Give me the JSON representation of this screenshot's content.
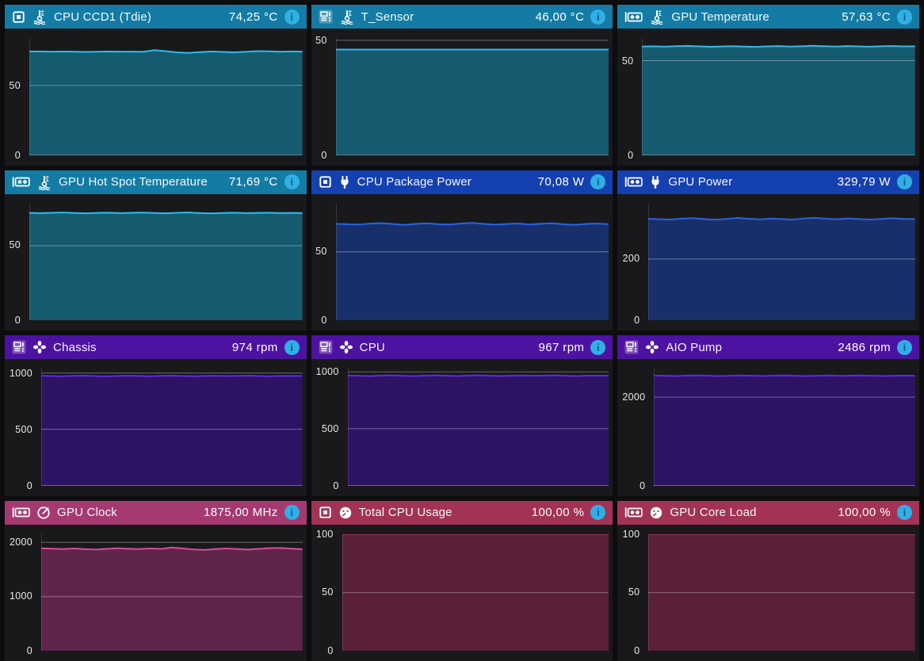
{
  "shared": {
    "info_glyph": "i",
    "colors": {
      "page_bg": "#0D0D10",
      "panel_bg": "#19191C",
      "grid_line": "rgba(255,255,255,0.35)",
      "tick_text": "#E8E8E8",
      "title_text": "#F4F7F9",
      "info_icon_bg": "#2FAFE6",
      "info_icon_glyph": "#0D5E88"
    }
  },
  "panels": [
    {
      "title": "CPU CCD1 (Tdie)",
      "value": "74,25 °C",
      "device_icon": "cpu-icon",
      "sensor_icon": "thermometer-icon",
      "colors": {
        "header": "#147CA4",
        "line": "#29BEEF",
        "fill": "#165A70"
      },
      "chart_data": {
        "type": "area",
        "ylim": [
          0,
          84
        ],
        "yticks": [
          50,
          0
        ],
        "unit": "°C",
        "grid": true,
        "values": [
          74.4,
          74.3,
          74.2,
          74.35,
          74.15,
          74.0,
          74.2,
          74.3,
          74.15,
          74.25,
          74.1,
          75.3,
          74.5,
          73.7,
          73.35,
          73.9,
          74.3,
          74.0,
          73.75,
          74.1,
          74.6,
          74.45,
          74.2,
          74.3,
          74.25
        ]
      }
    },
    {
      "title": "T_Sensor",
      "value": "46,00 °C",
      "device_icon": "motherboard-icon",
      "sensor_icon": "thermometer-icon",
      "colors": {
        "header": "#147CA4",
        "line": "#29BEEF",
        "fill": "#165A70"
      },
      "chart_data": {
        "type": "area",
        "ylim": [
          0,
          51
        ],
        "yticks": [
          50,
          0
        ],
        "unit": "°C",
        "grid": true,
        "values": [
          46,
          46,
          46,
          46,
          46,
          46,
          46,
          46,
          46,
          46,
          46,
          46,
          46,
          46,
          46,
          46,
          46,
          46,
          46,
          46,
          46,
          46,
          46,
          46,
          46
        ]
      }
    },
    {
      "title": "GPU Temperature",
      "value": "57,63 °C",
      "device_icon": "gpu-icon",
      "sensor_icon": "thermometer-icon",
      "colors": {
        "header": "#147CA4",
        "line": "#29BEEF",
        "fill": "#165A70"
      },
      "chart_data": {
        "type": "area",
        "ylim": [
          0,
          62
        ],
        "yticks": [
          50,
          0
        ],
        "unit": "°C",
        "grid": true,
        "values": [
          57.5,
          57.65,
          57.45,
          57.7,
          57.85,
          57.6,
          57.4,
          57.55,
          57.7,
          57.5,
          57.3,
          57.6,
          57.75,
          57.5,
          57.65,
          57.9,
          57.7,
          57.5,
          57.75,
          57.6,
          57.45,
          57.65,
          57.8,
          57.6,
          57.63
        ]
      }
    },
    {
      "title": "GPU Hot Spot Temperature",
      "value": "71,69 °C",
      "device_icon": "gpu-icon",
      "sensor_icon": "thermometer-icon",
      "colors": {
        "header": "#147CA4",
        "line": "#29BEEF",
        "fill": "#165A70"
      },
      "chart_data": {
        "type": "area",
        "ylim": [
          0,
          78
        ],
        "yticks": [
          50,
          0
        ],
        "unit": "°C",
        "grid": true,
        "values": [
          71.9,
          71.75,
          71.95,
          72.1,
          71.8,
          71.6,
          71.85,
          72.0,
          71.7,
          71.9,
          72.05,
          71.8,
          71.6,
          71.9,
          72.1,
          71.75,
          71.5,
          71.8,
          72.0,
          71.7,
          71.85,
          72.0,
          71.75,
          71.85,
          71.69
        ]
      }
    },
    {
      "title": "CPU Package Power",
      "value": "70,08 W",
      "device_icon": "cpu-icon",
      "sensor_icon": "plug-icon",
      "colors": {
        "header": "#1540B0",
        "line": "#2B62DC",
        "fill": "#18306A"
      },
      "chart_data": {
        "type": "area",
        "ylim": [
          0,
          85
        ],
        "yticks": [
          50,
          0
        ],
        "unit": "W",
        "grid": true,
        "values": [
          70.4,
          70.1,
          69.8,
          70.5,
          70.9,
          70.2,
          69.6,
          70.3,
          70.7,
          70.1,
          69.8,
          70.6,
          71.0,
          70.3,
          69.7,
          70.2,
          70.6,
          69.9,
          70.4,
          70.8,
          70.0,
          69.6,
          70.3,
          70.5,
          70.08
        ]
      }
    },
    {
      "title": "GPU Power",
      "value": "329,79 W",
      "device_icon": "gpu-icon",
      "sensor_icon": "plug-icon",
      "colors": {
        "header": "#1540B0",
        "line": "#2B62DC",
        "fill": "#18306A"
      },
      "chart_data": {
        "type": "area",
        "ylim": [
          0,
          380
        ],
        "yticks": [
          200,
          0
        ],
        "unit": "W",
        "grid": true,
        "values": [
          331,
          329.5,
          328.5,
          331.5,
          333,
          330,
          328,
          330.5,
          333.5,
          331,
          329,
          331.5,
          330,
          328.5,
          332,
          334,
          331,
          329.5,
          332,
          330,
          328.5,
          330.5,
          332.5,
          330.5,
          329.79
        ]
      }
    },
    {
      "title": "Chassis",
      "value": "974 rpm",
      "device_icon": "motherboard-icon",
      "sensor_icon": "fan-icon",
      "colors": {
        "header": "#4D12A2",
        "line": "#5F2CD9",
        "fill": "#2E1263"
      },
      "chart_data": {
        "type": "area",
        "ylim": [
          0,
          1040
        ],
        "yticks": [
          1000,
          500,
          0
        ],
        "unit": "rpm",
        "grid": true,
        "values": [
          976,
          973,
          971,
          975,
          977,
          973,
          970,
          974,
          977,
          974,
          971,
          975,
          977,
          974,
          971,
          974,
          976,
          973,
          975,
          977,
          973,
          971,
          975,
          974,
          974
        ]
      }
    },
    {
      "title": "CPU",
      "value": "967 rpm",
      "device_icon": "motherboard-icon",
      "sensor_icon": "fan-icon",
      "colors": {
        "header": "#4D12A2",
        "line": "#5F2CD9",
        "fill": "#2E1263"
      },
      "chart_data": {
        "type": "area",
        "ylim": [
          0,
          1030
        ],
        "yticks": [
          1000,
          500,
          0
        ],
        "unit": "rpm",
        "grid": true,
        "values": [
          969,
          966,
          964,
          968,
          970,
          966,
          963,
          967,
          970,
          967,
          964,
          968,
          970,
          967,
          964,
          967,
          969,
          966,
          968,
          970,
          966,
          964,
          968,
          967,
          967
        ]
      }
    },
    {
      "title": "AIO Pump",
      "value": "2486 rpm",
      "device_icon": "motherboard-icon",
      "sensor_icon": "fan-icon",
      "colors": {
        "header": "#4D12A2",
        "line": "#5F2CD9",
        "fill": "#2E1263"
      },
      "chart_data": {
        "type": "area",
        "ylim": [
          0,
          2650
        ],
        "yticks": [
          2000,
          0
        ],
        "unit": "rpm",
        "grid": true,
        "values": [
          2492,
          2486,
          2480,
          2489,
          2494,
          2486,
          2479,
          2486,
          2493,
          2487,
          2481,
          2488,
          2493,
          2486,
          2480,
          2487,
          2492,
          2485,
          2489,
          2493,
          2486,
          2481,
          2487,
          2490,
          2486
        ]
      }
    },
    {
      "title": "GPU Clock",
      "value": "1875,00 MHz",
      "device_icon": "gpu-icon",
      "sensor_icon": "clock-icon",
      "colors": {
        "header": "#A53A71",
        "line": "#D94D9C",
        "fill": "#5F244A"
      },
      "chart_data": {
        "type": "area",
        "ylim": [
          0,
          2150
        ],
        "yticks": [
          2000,
          1000,
          0
        ],
        "unit": "MHz",
        "grid": true,
        "values": [
          1892,
          1884,
          1877,
          1888,
          1875,
          1868,
          1881,
          1891,
          1883,
          1876,
          1887,
          1880,
          1904,
          1887,
          1869,
          1861,
          1876,
          1887,
          1877,
          1867,
          1881,
          1893,
          1897,
          1884,
          1875
        ]
      }
    },
    {
      "title": "Total CPU Usage",
      "value": "100,00 %",
      "device_icon": "cpu-icon",
      "sensor_icon": "gauge-icon",
      "colors": {
        "header": "#A23355",
        "line": "#99304F",
        "fill": "#5A2038"
      },
      "chart_data": {
        "type": "area",
        "ylim": [
          0,
          100
        ],
        "yticks": [
          100,
          50,
          0
        ],
        "unit": "%",
        "grid": true,
        "values": [
          100,
          100,
          100,
          100,
          100,
          100,
          100,
          100,
          100,
          100,
          100,
          100,
          100,
          100,
          100,
          100,
          100,
          100,
          100,
          100,
          100,
          100,
          100,
          100,
          100
        ]
      }
    },
    {
      "title": "GPU Core Load",
      "value": "100,00 %",
      "device_icon": "gpu-icon",
      "sensor_icon": "gauge-icon",
      "colors": {
        "header": "#A23355",
        "line": "#99304F",
        "fill": "#5A2038"
      },
      "chart_data": {
        "type": "area",
        "ylim": [
          0,
          100
        ],
        "yticks": [
          100,
          50,
          0
        ],
        "unit": "%",
        "grid": true,
        "values": [
          100,
          100,
          100,
          100,
          100,
          100,
          100,
          100,
          100,
          100,
          100,
          100,
          100,
          100,
          100,
          100,
          100,
          100,
          100,
          100,
          100,
          100,
          100,
          100,
          100
        ]
      }
    }
  ]
}
